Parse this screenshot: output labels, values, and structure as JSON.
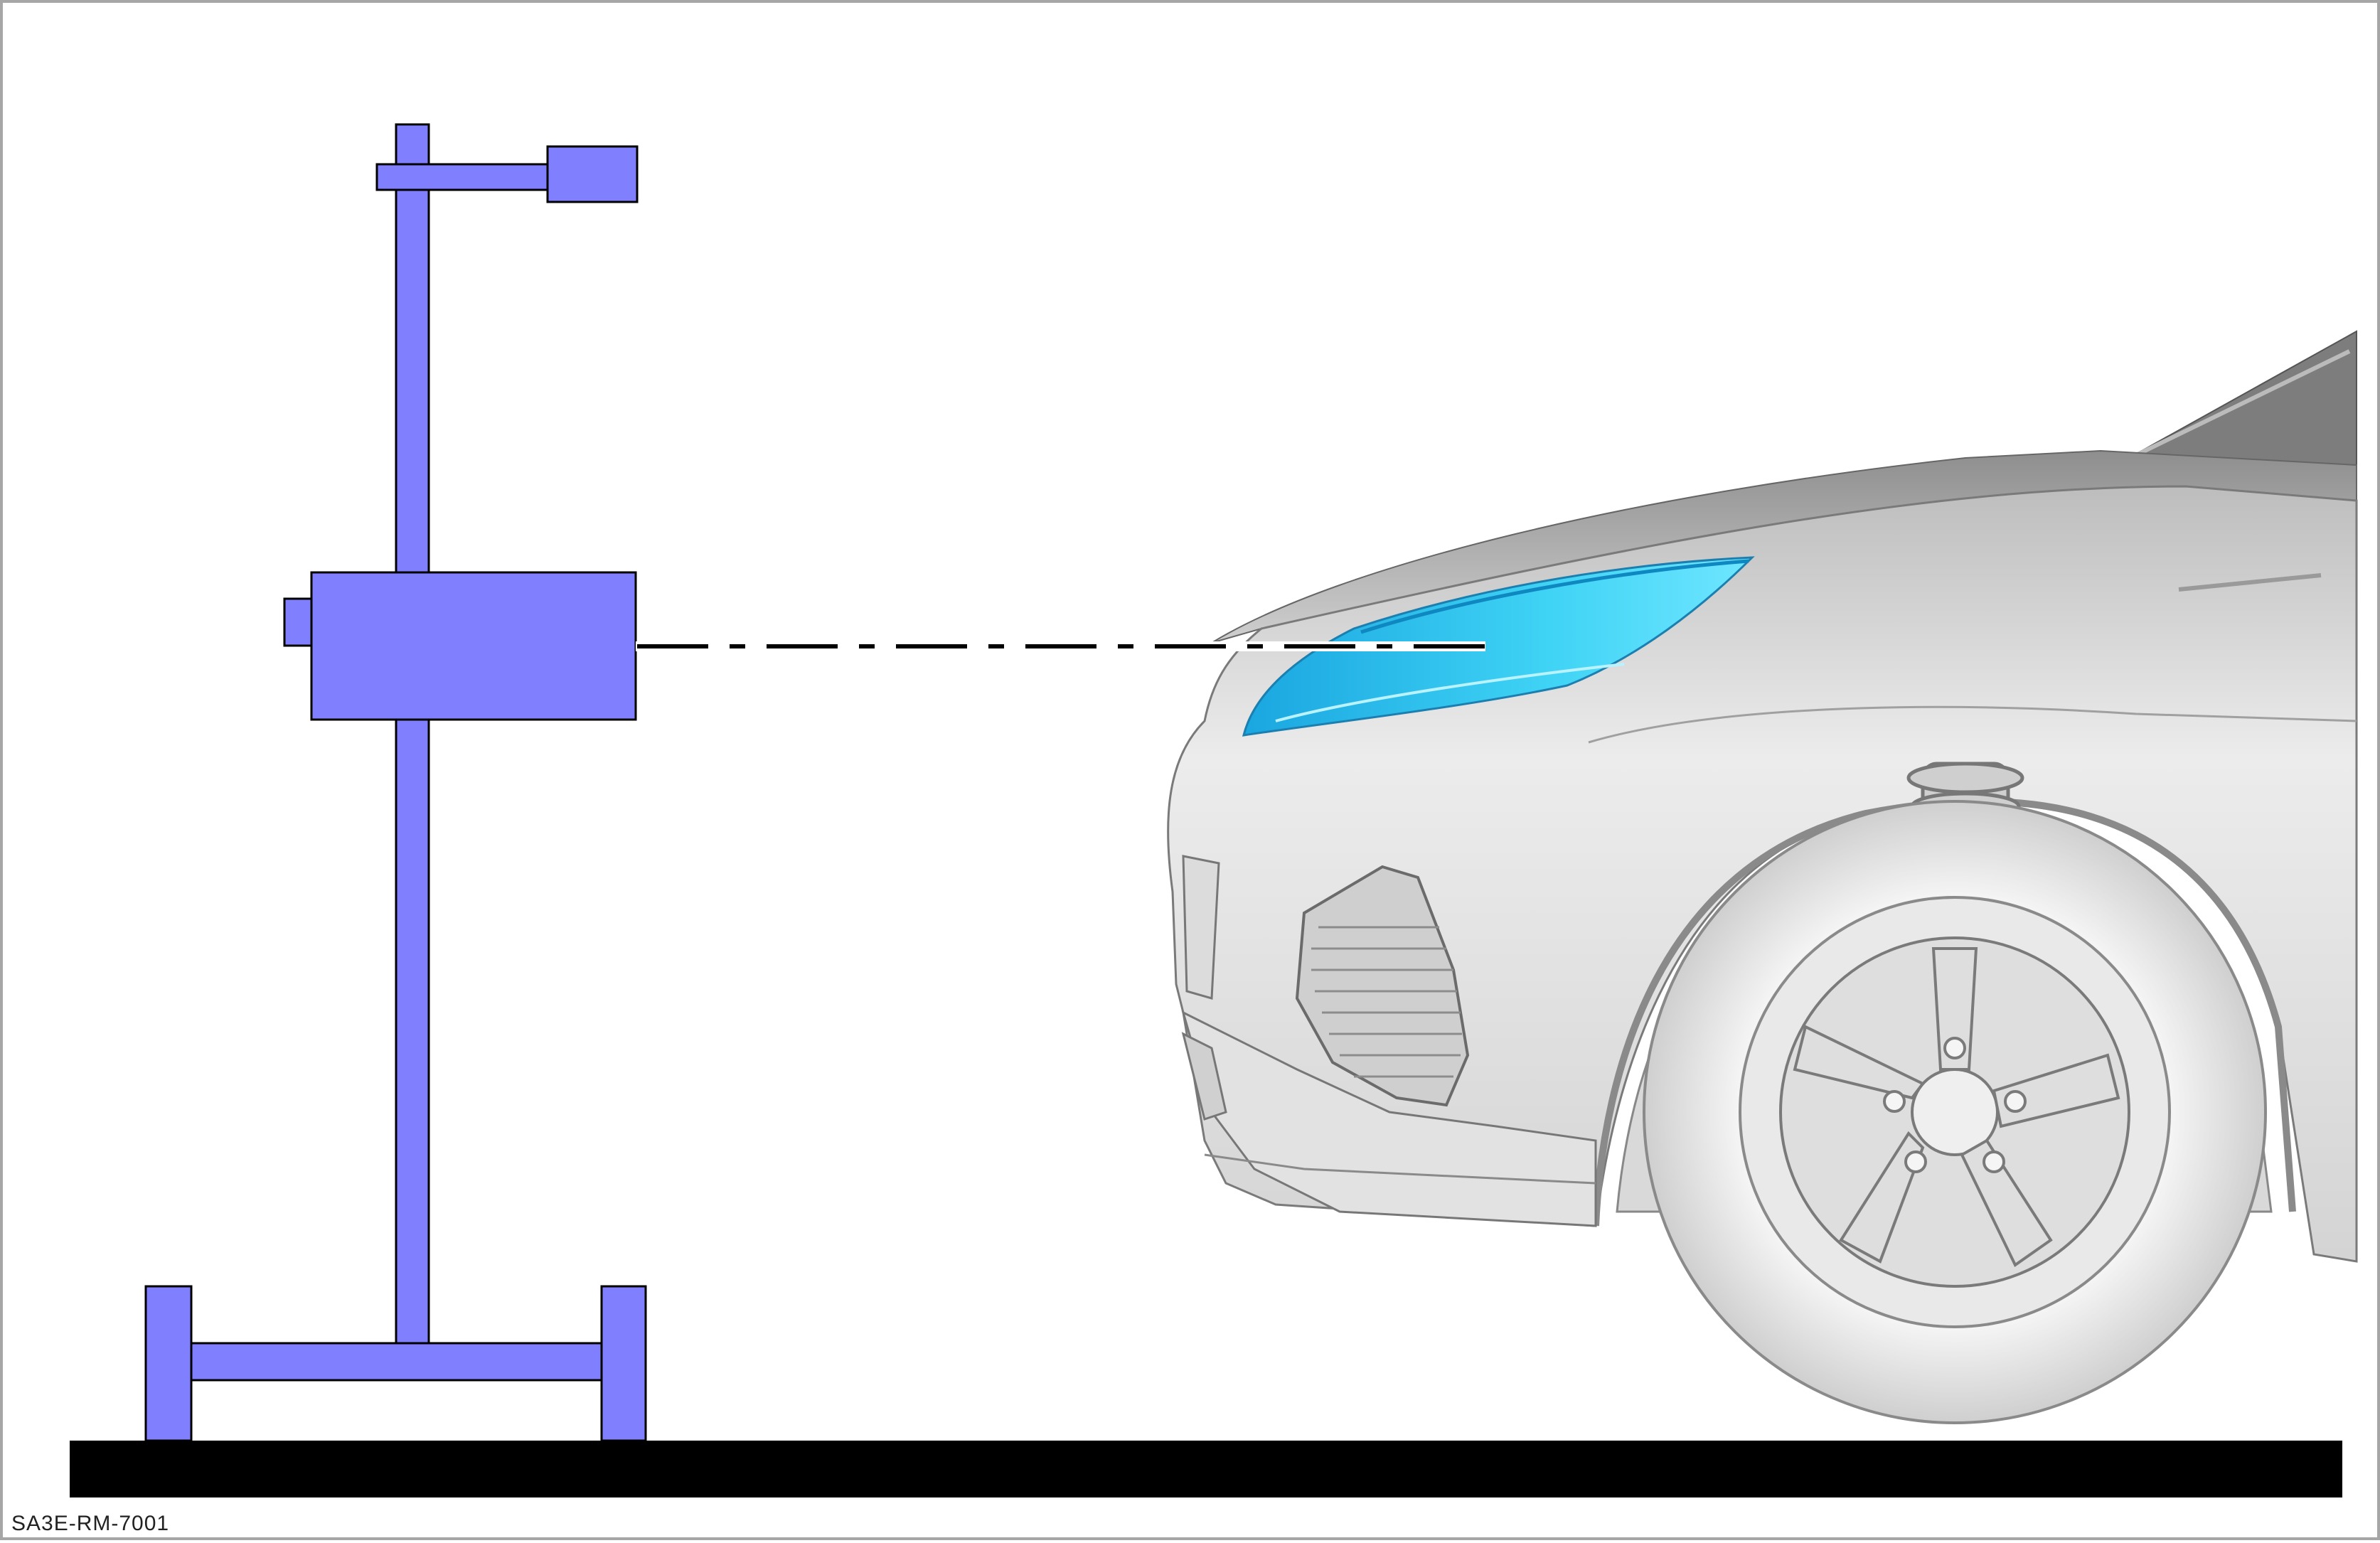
{
  "figure": {
    "caption": "SA3E-RM-7001",
    "colors": {
      "aimer_fill": "#8080ff",
      "outline": "#000000",
      "ground": "#000000",
      "headlamp": "#3ad6f4",
      "car_body": "#e6e6e6",
      "car_shadow": "#9a9a9a",
      "tire": "#f0f0f0"
    },
    "icons": [
      "headlamp-aimer-icon",
      "vehicle-front-icon",
      "alignment-line-icon"
    ]
  }
}
